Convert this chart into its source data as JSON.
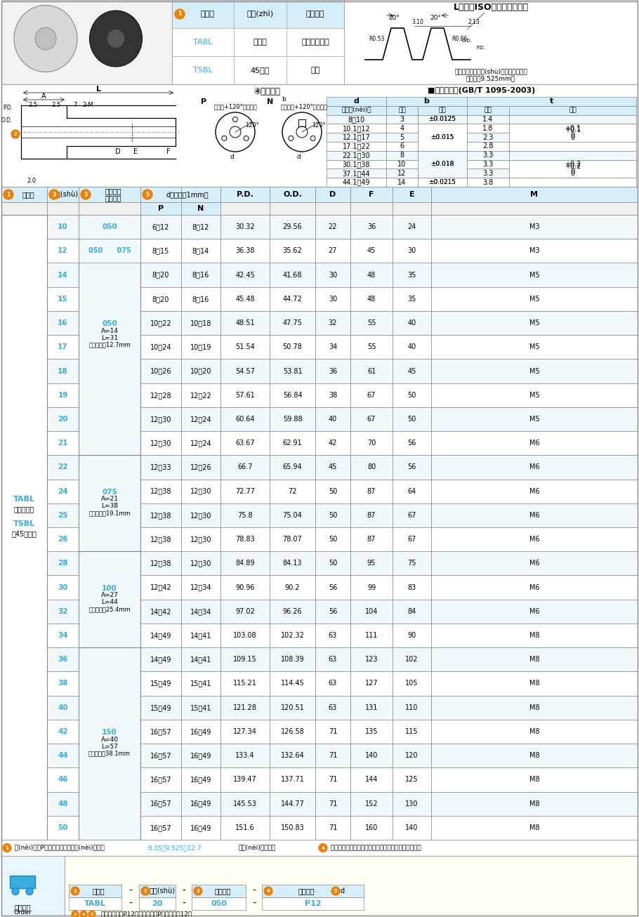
{
  "bg_color": "#ffffff",
  "orange_color": "#e8820a",
  "blue_color": "#3aace0",
  "light_blue_bg": "#d6eef9",
  "header_bg": "#d6eef9",
  "gray_bg": "#e8e8e8",
  "table1_rows": [
    [
      "TABL",
      "鲳合金",
      "本色阳极氧化"
    ],
    [
      "TSBL",
      "45号钉",
      "発黑"
    ]
  ],
  "keycap_rows": [
    [
      "8～10",
      "3",
      "±0.0125",
      "1.4",
      ""
    ],
    [
      "10.1～12",
      "4",
      "",
      "1.8",
      "+0.1"
    ],
    [
      "12.1～17",
      "5",
      "±0.015",
      "2.3",
      "0"
    ],
    [
      "17.1～22",
      "6",
      "",
      "2.8",
      ""
    ],
    [
      "22.1～30",
      "8",
      "",
      "3.3",
      ""
    ],
    [
      "30.1～38",
      "10",
      "±0.018",
      "3.3",
      "+0.2"
    ],
    [
      "37.1～44",
      "12",
      "",
      "3.3",
      "0"
    ],
    [
      "44.1～49",
      "14",
      "±0.0215",
      "3.8",
      ""
    ]
  ],
  "main_rows": [
    [
      "10",
      "6～12",
      "8～12",
      "30.32",
      "29.56",
      "22",
      "36",
      "24",
      "M3"
    ],
    [
      "12",
      "8～15",
      "8～14",
      "36.38",
      "35.62",
      "27",
      "45",
      "30",
      "M3"
    ],
    [
      "14",
      "8～20",
      "8～16",
      "42.45",
      "41.68",
      "30",
      "48",
      "35",
      "M5"
    ],
    [
      "15",
      "8～20",
      "8～16",
      "45.48",
      "44.72",
      "30",
      "48",
      "35",
      "M5"
    ],
    [
      "16",
      "10～22",
      "10～18",
      "48.51",
      "47.75",
      "32",
      "55",
      "40",
      "M5"
    ],
    [
      "17",
      "10～24",
      "10～19",
      "51.54",
      "50.78",
      "34",
      "55",
      "40",
      "M5"
    ],
    [
      "18",
      "10～26",
      "10～20",
      "54.57",
      "53.81",
      "36",
      "61",
      "45",
      "M5"
    ],
    [
      "19",
      "12～28",
      "12～22",
      "57.61",
      "56.84",
      "38",
      "67",
      "50",
      "M5"
    ],
    [
      "20",
      "12～30",
      "12～24",
      "60.64",
      "59.88",
      "40",
      "67",
      "50",
      "M5"
    ],
    [
      "21",
      "12～30",
      "12～24",
      "63.67",
      "62.91",
      "42",
      "70",
      "56",
      "M6"
    ],
    [
      "22",
      "12～33",
      "12～26",
      "66.7",
      "65.94",
      "45",
      "80",
      "56",
      "M6"
    ],
    [
      "24",
      "12～38",
      "12～30",
      "72.77",
      "72",
      "50",
      "87",
      "64",
      "M6"
    ],
    [
      "25",
      "12～38",
      "12～30",
      "75.8",
      "75.04",
      "50",
      "87",
      "67",
      "M6"
    ],
    [
      "26",
      "12～38",
      "12～30",
      "78.83",
      "78.07",
      "50",
      "87",
      "67",
      "M6"
    ],
    [
      "28",
      "12～38",
      "12～30",
      "84.89",
      "84.13",
      "50",
      "95",
      "75",
      "M6"
    ],
    [
      "30",
      "12～42",
      "12～34",
      "90.96",
      "90.2",
      "56",
      "99",
      "83",
      "M6"
    ],
    [
      "32",
      "14～42",
      "14～34",
      "97.02",
      "96.26",
      "56",
      "104",
      "84",
      "M6"
    ],
    [
      "34",
      "14～49",
      "14～41",
      "103.08",
      "102.32",
      "63",
      "111",
      "90",
      "M8"
    ],
    [
      "36",
      "14～49",
      "14～41",
      "109.15",
      "108.39",
      "63",
      "123",
      "102",
      "M8"
    ],
    [
      "38",
      "15～49",
      "15～41",
      "115.21",
      "114.45",
      "63",
      "127",
      "105",
      "M8"
    ],
    [
      "40",
      "15～49",
      "15～41",
      "121.28",
      "120.51",
      "63",
      "131",
      "110",
      "M8"
    ],
    [
      "42",
      "16～57",
      "16～49",
      "127.34",
      "126.58",
      "71",
      "135",
      "115",
      "M8"
    ],
    [
      "44",
      "16～57",
      "16～49",
      "133.4",
      "132.64",
      "71",
      "140",
      "120",
      "M8"
    ],
    [
      "46",
      "16～57",
      "16～49",
      "139.47",
      "137.71",
      "71",
      "144",
      "125",
      "M8"
    ],
    [
      "48",
      "16～57",
      "16～49",
      "145.53",
      "144.77",
      "71",
      "152",
      "130",
      "M8"
    ],
    [
      "50",
      "16～57",
      "16～49",
      "151.6",
      "150.83",
      "71",
      "160",
      "140",
      "M8"
    ]
  ],
  "width_groups": [
    {
      "rows": [
        0,
        9
      ],
      "code": "050",
      "A": "14",
      "L": "31",
      "belt": "12.7mm"
    },
    {
      "rows": [
        10,
        13
      ],
      "code": "075",
      "A": "21",
      "L": "38",
      "belt": "19.1mm"
    },
    {
      "rows": [
        14,
        17
      ],
      "code": "100",
      "A": "27",
      "L": "44",
      "belt": "25.4mm"
    },
    {
      "rows": [
        18,
        25
      ],
      "code": "150",
      "A": "40",
      "L": "57",
      "belt": "38.1mm"
    }
  ],
  "special_width_row0": "050",
  "special_width_row1": "050        075"
}
